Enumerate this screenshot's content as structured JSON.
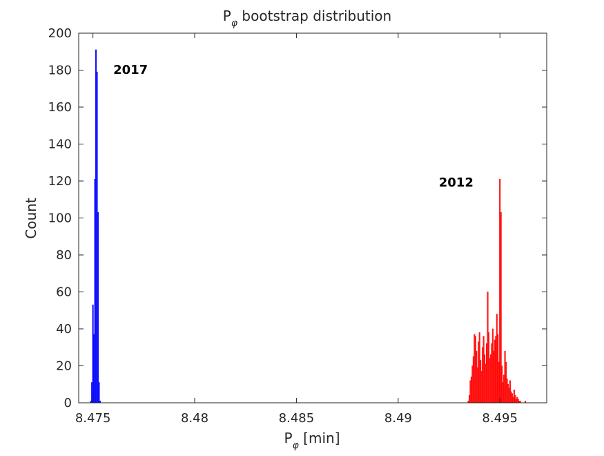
{
  "chart_data": {
    "type": "bar",
    "title": "P",
    "title_subscript": "φ",
    "title_rest": " bootstrap distribution",
    "xlabel": "P",
    "xlabel_subscript": "φ",
    "xlabel_rest": " [min]",
    "ylabel": "Count",
    "xlim": [
      8.4743,
      8.4973
    ],
    "ylim": [
      0,
      200
    ],
    "xticks": [
      8.475,
      8.48,
      8.485,
      8.49,
      8.495
    ],
    "xtick_labels": [
      "8.475",
      "8.48",
      "8.485",
      "8.49",
      "8.495"
    ],
    "yticks": [
      0,
      20,
      40,
      60,
      80,
      100,
      120,
      140,
      160,
      180,
      200
    ],
    "ytick_labels": [
      "0",
      "20",
      "40",
      "60",
      "80",
      "100",
      "120",
      "140",
      "160",
      "180",
      "200"
    ],
    "grid": false,
    "box": true,
    "series": [
      {
        "name": "2017",
        "color": "#0000ff",
        "bin_width": 5e-05,
        "x": [
          8.4749,
          8.47495,
          8.475,
          8.47505,
          8.4751,
          8.47515,
          8.4752,
          8.47525,
          8.4753,
          8.47535
        ],
        "values": [
          1,
          11,
          53,
          37,
          121,
          191,
          179,
          103,
          11,
          1
        ]
      },
      {
        "name": "2012",
        "color": "#ff0000",
        "bin_width": 5e-05,
        "x": [
          8.49345,
          8.4935,
          8.49355,
          8.4936,
          8.49365,
          8.4937,
          8.49375,
          8.4938,
          8.49385,
          8.4939,
          8.49395,
          8.494,
          8.49405,
          8.4941,
          8.49415,
          8.4942,
          8.49425,
          8.4943,
          8.49435,
          8.4944,
          8.49445,
          8.4945,
          8.49455,
          8.4946,
          8.49465,
          8.4947,
          8.49475,
          8.4948,
          8.49485,
          8.4949,
          8.49495,
          8.495,
          8.49505,
          8.4951,
          8.49515,
          8.4952,
          8.49525,
          8.4953,
          8.49535,
          8.4954,
          8.49545,
          8.4955,
          8.49555,
          8.4956,
          8.49565,
          8.4957,
          8.49575,
          8.4958,
          8.49585,
          8.4959,
          8.49595,
          8.496,
          8.49605,
          8.4961,
          8.49615,
          8.4962,
          8.49625
        ],
        "values": [
          1,
          4,
          12,
          14,
          20,
          25,
          37,
          36,
          28,
          19,
          33,
          38,
          23,
          17,
          30,
          36,
          26,
          21,
          32,
          60,
          38,
          24,
          26,
          32,
          40,
          28,
          34,
          36,
          48,
          37,
          22,
          121,
          103,
          20,
          11,
          15,
          28,
          22,
          13,
          10,
          8,
          12,
          6,
          5,
          3,
          7,
          4,
          2,
          3,
          2,
          1,
          1,
          0,
          0,
          0,
          0,
          1
        ]
      }
    ],
    "annotations": [
      {
        "text": "2017",
        "x": 8.476,
        "y": 178
      },
      {
        "text": "2012",
        "x": 8.492,
        "y": 117
      }
    ]
  }
}
